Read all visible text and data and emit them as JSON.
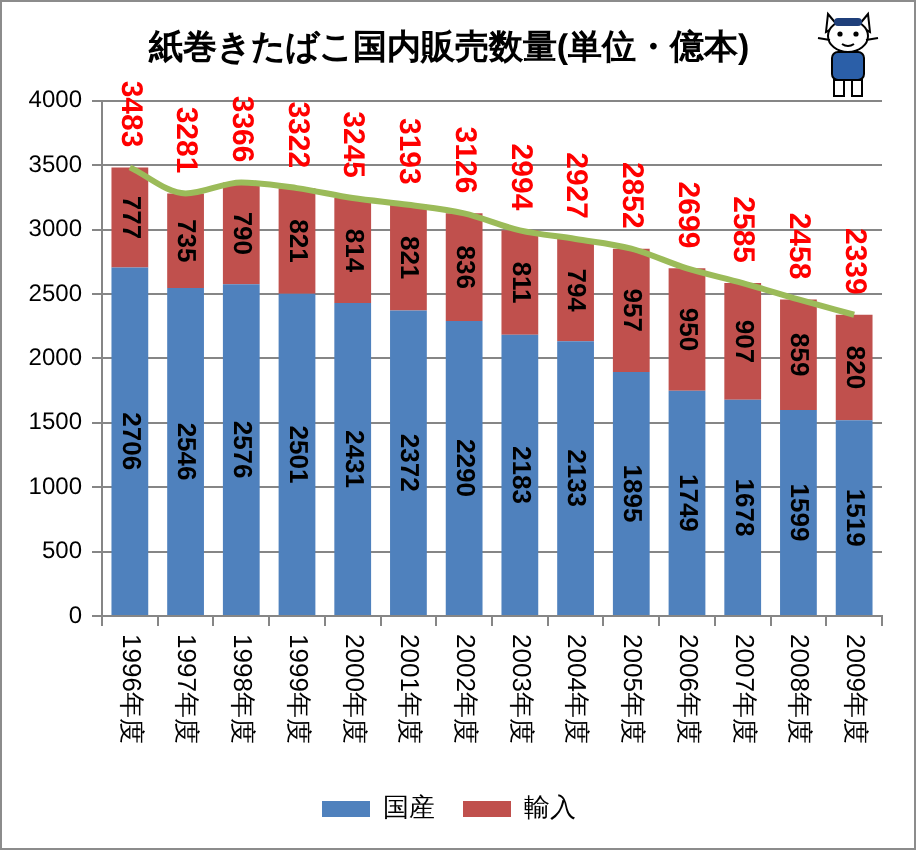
{
  "chart_data": {
    "type": "bar",
    "title": "紙巻きたばこ国内販売数量(単位・億本)",
    "categories": [
      "1996年度",
      "1997年度",
      "1998年度",
      "1999年度",
      "2000年度",
      "2001年度",
      "2002年度",
      "2003年度",
      "2004年度",
      "2005年度",
      "2006年度",
      "2007年度",
      "2008年度",
      "2009年度"
    ],
    "stacked": true,
    "series": [
      {
        "name": "国産",
        "color": "#4f81bd",
        "values": [
          2706,
          2546,
          2576,
          2501,
          2431,
          2372,
          2290,
          2183,
          2133,
          1895,
          1749,
          1678,
          1599,
          1519
        ]
      },
      {
        "name": "輸入",
        "color": "#c0504d",
        "values": [
          777,
          735,
          790,
          821,
          814,
          821,
          836,
          811,
          794,
          957,
          950,
          907,
          859,
          820
        ]
      },
      {
        "type": "line",
        "color": "#9bbb59",
        "values": [
          3483,
          3281,
          3366,
          3322,
          3245,
          3193,
          3126,
          2994,
          2927,
          2852,
          2699,
          2585,
          2458,
          2339
        ]
      }
    ],
    "ylim": [
      0,
      4000
    ],
    "yticks": [
      0,
      500,
      1000,
      1500,
      2000,
      2500,
      3000,
      3500,
      4000
    ],
    "grid": "y",
    "legend": "bottom",
    "data_labels": true,
    "marker": "none"
  }
}
